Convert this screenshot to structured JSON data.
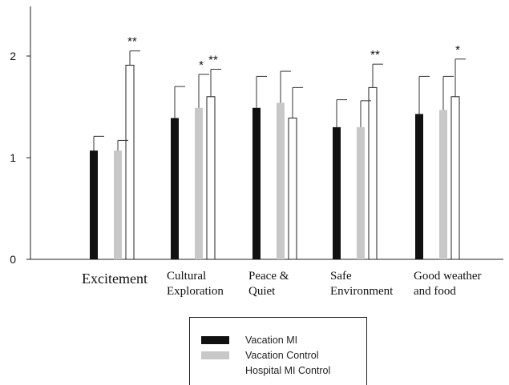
{
  "chart_data": {
    "type": "bar",
    "title": "",
    "xlabel": "",
    "ylabel": "",
    "ylim": [
      0,
      2.5
    ],
    "yticks": [
      0,
      1,
      2
    ],
    "grid": false,
    "legend_position": "bottom-center",
    "categories": [
      {
        "lines": [
          "Excitement"
        ]
      },
      {
        "lines": [
          "Cultural",
          "Exploration"
        ]
      },
      {
        "lines": [
          "Peace &",
          "Quiet"
        ]
      },
      {
        "lines": [
          "Safe",
          "Environment"
        ]
      },
      {
        "lines": [
          "Good weather",
          "and food"
        ]
      }
    ],
    "series": [
      {
        "name": "Vacation MI",
        "color": "#111111",
        "values": [
          1.07,
          1.39,
          1.49,
          1.3,
          1.43
        ],
        "errors": [
          0.14,
          0.31,
          0.31,
          0.27,
          0.37
        ]
      },
      {
        "name": "Vacation Control",
        "color": "#c8c8c8",
        "values": [
          1.07,
          1.49,
          1.54,
          1.3,
          1.47
        ],
        "errors": [
          0.1,
          0.33,
          0.31,
          0.26,
          0.33
        ]
      },
      {
        "name": "Hospital MI Control",
        "color": "#ffffff",
        "values": [
          1.91,
          1.6,
          1.39,
          1.69,
          1.6
        ],
        "errors": [
          0.14,
          0.27,
          0.3,
          0.23,
          0.37
        ]
      }
    ],
    "significance": [
      {
        "category": 0,
        "series": 2,
        "label": "**"
      },
      {
        "category": 1,
        "series": 1,
        "label": "*"
      },
      {
        "category": 1,
        "series": 2,
        "label": "**"
      },
      {
        "category": 3,
        "series": 2,
        "label": "**"
      },
      {
        "category": 4,
        "series": 2,
        "label": "*"
      }
    ]
  }
}
